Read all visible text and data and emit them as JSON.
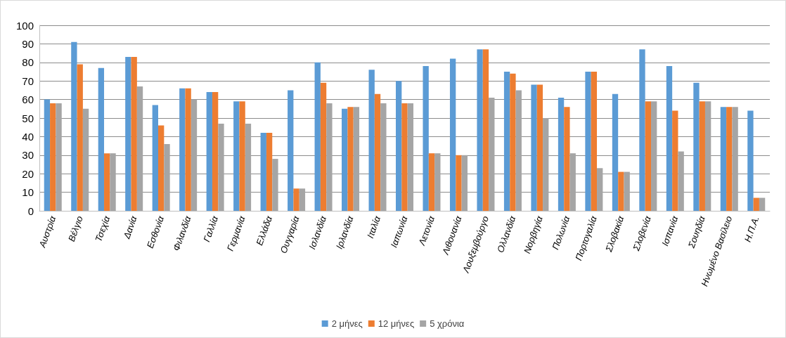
{
  "chart_data": {
    "type": "bar",
    "categories": [
      "Αυστρία",
      "Βέλγιο",
      "Τσεχία",
      "Δανία",
      "Εσθονία",
      "Φιλανδία",
      "Γαλλία",
      "Γερμανία",
      "Ελλάδα",
      "Ουγγαρία",
      "Ισλανδία",
      "Ιρλανδία",
      "Ιταλία",
      "Ιαπωνία",
      "Λετονία",
      "Λιθουανία",
      "Λουξεμβούργο",
      "Ολλανδία",
      "Νορβηγία",
      "Πολωνία",
      "Πορτογαλία",
      "Σλοβακία",
      "Σλοβενία",
      "Ισπανία",
      "Σουηδία",
      "Ηνωμένο Βασίλειο",
      "Η.Π.Α."
    ],
    "series": [
      {
        "name": "2 μήνες",
        "color": "#5b9bd5",
        "values": [
          60,
          91,
          77,
          83,
          57,
          66,
          64,
          59,
          42,
          65,
          80,
          55,
          76,
          70,
          78,
          82,
          87,
          75,
          68,
          61,
          75,
          63,
          87,
          78,
          69,
          56,
          54
        ]
      },
      {
        "name": "12 μήνες",
        "color": "#ed7d31",
        "values": [
          58,
          79,
          31,
          83,
          46,
          66,
          64,
          59,
          42,
          12,
          69,
          56,
          63,
          58,
          31,
          30,
          87,
          74,
          68,
          56,
          75,
          21,
          59,
          54,
          59,
          56,
          7
        ]
      },
      {
        "name": "5 χρόνια",
        "color": "#a5a5a5",
        "values": [
          58,
          55,
          31,
          67,
          36,
          60,
          47,
          47,
          28,
          12,
          58,
          56,
          58,
          58,
          31,
          30,
          61,
          65,
          50,
          31,
          23,
          21,
          59,
          32,
          59,
          56,
          7
        ]
      }
    ],
    "ylim": [
      0,
      100
    ],
    "yticks": [
      0,
      10,
      20,
      30,
      40,
      50,
      60,
      70,
      80,
      90,
      100
    ],
    "grid": "y",
    "legend": "bottom"
  }
}
